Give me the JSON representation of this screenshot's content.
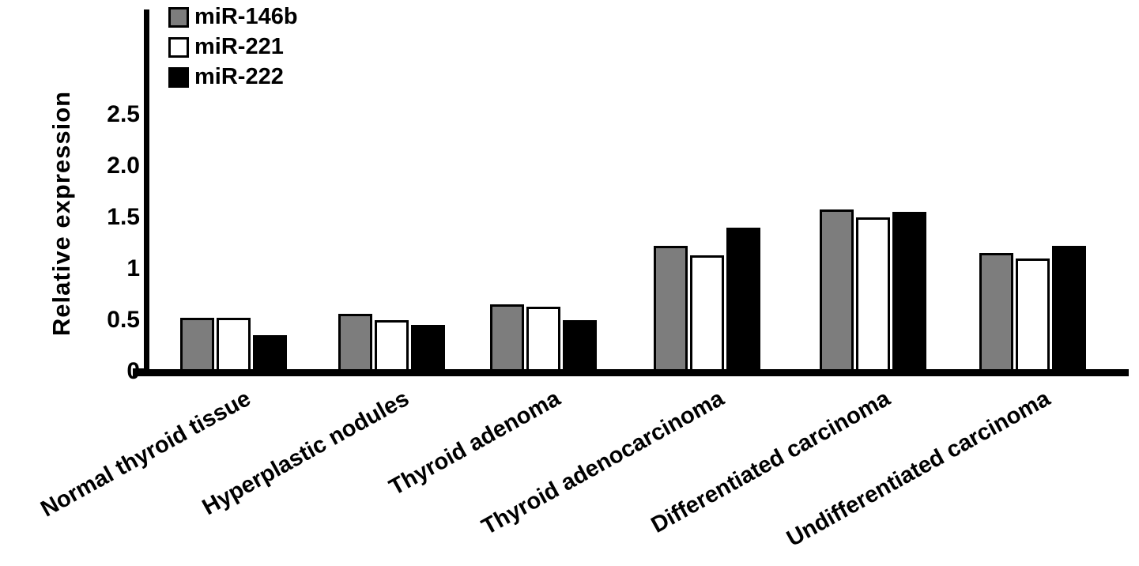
{
  "chart_data": {
    "type": "bar",
    "title": "",
    "xlabel": "",
    "ylabel": "Relative expression",
    "categories": [
      "Normal thyroid tissue",
      "Hyperplastic nodules",
      "Thyroid adenoma",
      "Thyroid adenocarcinoma",
      "Differentiated carcinoma",
      "Undifferentiated carcinoma"
    ],
    "series": [
      {
        "name": "miR-146b",
        "color": "#7d7d7d",
        "values": [
          0.52,
          0.56,
          0.65,
          1.22,
          1.58,
          1.15
        ]
      },
      {
        "name": "miR-221",
        "color": "#ffffff",
        "values": [
          0.52,
          0.5,
          0.63,
          1.13,
          1.5,
          1.1
        ]
      },
      {
        "name": "miR-222",
        "color": "#000000",
        "values": [
          0.35,
          0.45,
          0.5,
          1.4,
          1.55,
          1.22
        ]
      }
    ],
    "yticks": [
      {
        "label": "0",
        "value": 0
      },
      {
        "label": "0.5",
        "value": 0.5
      },
      {
        "label": "1",
        "value": 1
      },
      {
        "label": "1.5",
        "value": 1.5
      },
      {
        "label": "2.0",
        "value": 2.0
      },
      {
        "label": "2.5",
        "value": 2.5
      }
    ],
    "ylim": [
      0,
      3.2
    ],
    "grid": false,
    "legend_position": "top-left",
    "bar_outline_color": "#000000",
    "axis_color": "#000000"
  }
}
